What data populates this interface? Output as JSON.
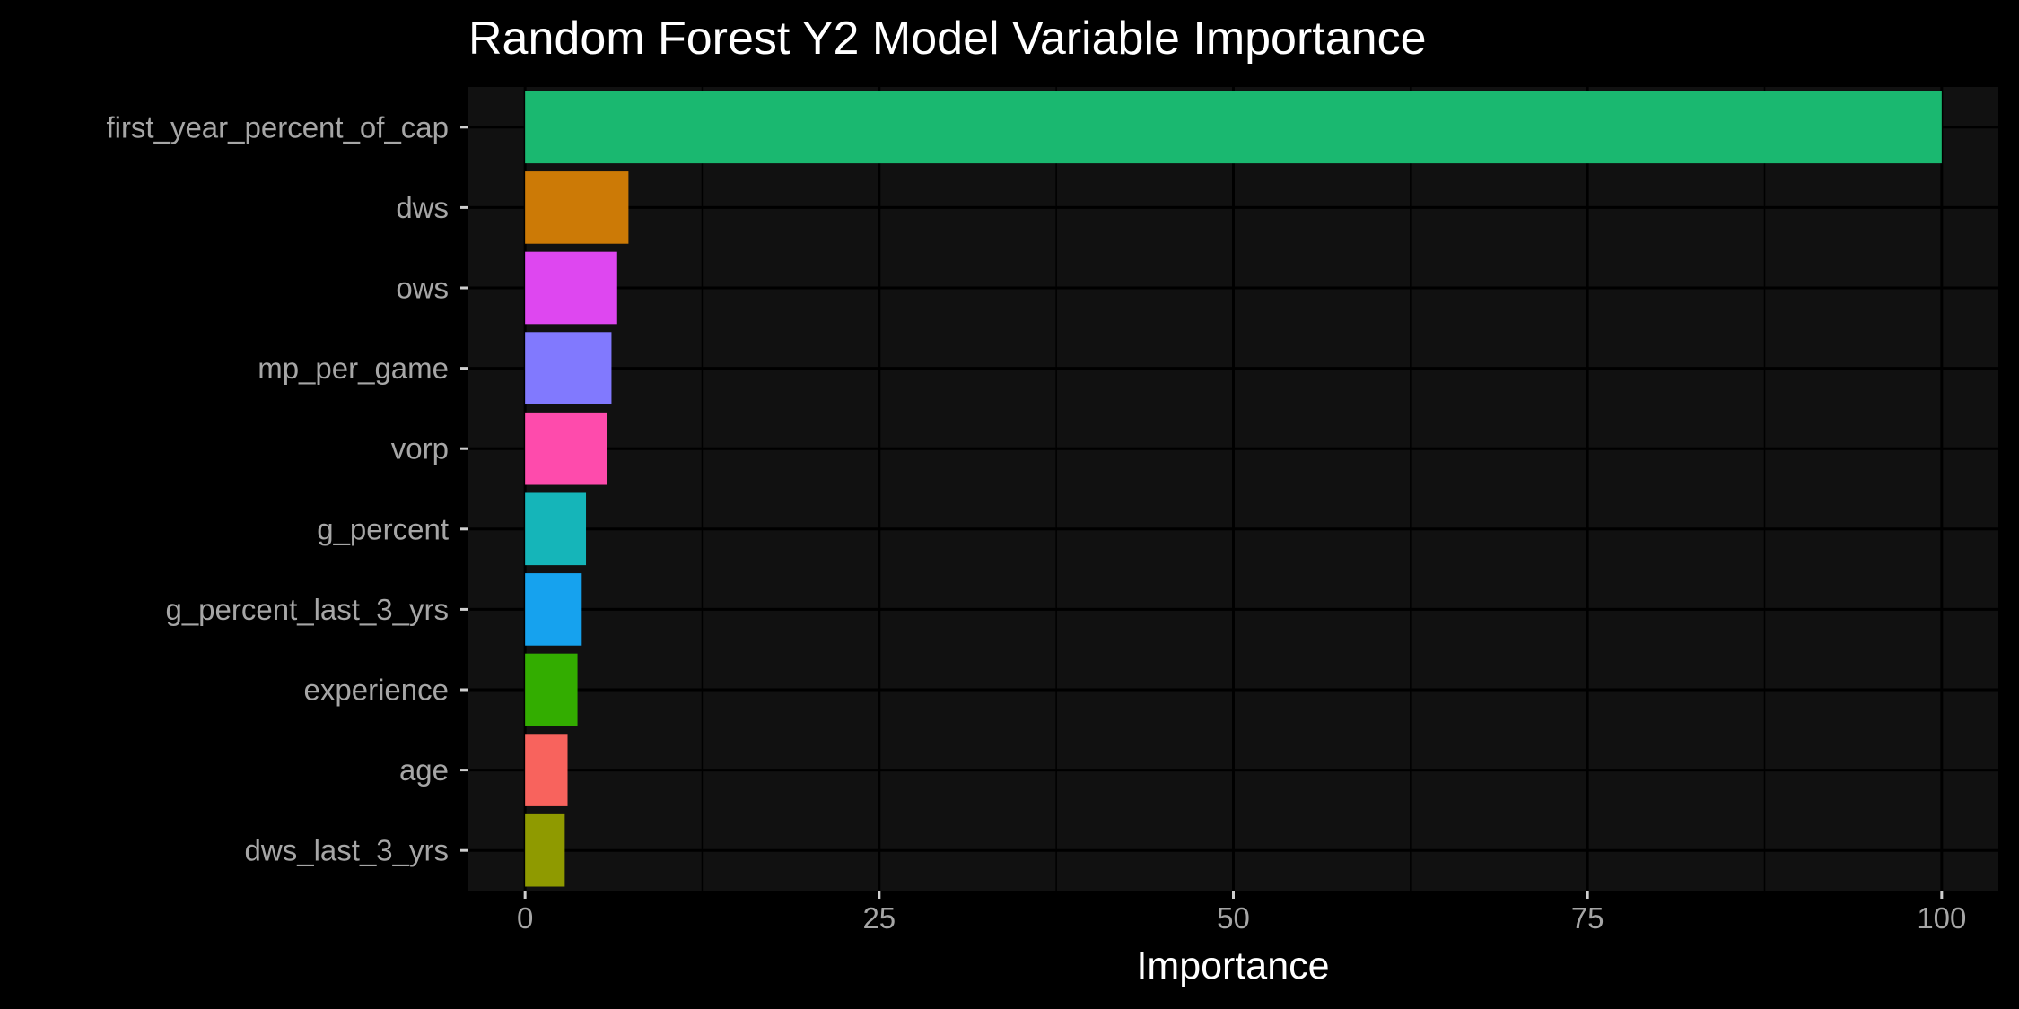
{
  "chart_data": {
    "type": "bar",
    "orientation": "horizontal",
    "title": "Random Forest Y2 Model Variable Importance",
    "xlabel": "Importance",
    "ylabel": "",
    "xlim": [
      -4,
      104
    ],
    "x_ticks": [
      0,
      25,
      50,
      75,
      100
    ],
    "x_tick_labels": [
      "0",
      "25",
      "50",
      "75",
      "100"
    ],
    "grid": true,
    "legend": "none",
    "categories": [
      "first_year_percent_of_cap",
      "dws",
      "ows",
      "mp_per_game",
      "vorp",
      "g_percent",
      "g_percent_last_3_yrs",
      "experience",
      "age",
      "dws_last_3_yrs"
    ],
    "values": [
      100,
      7.3,
      6.5,
      6.1,
      5.8,
      4.3,
      4.0,
      3.7,
      3.0,
      2.8
    ],
    "colors": [
      "#1ab870",
      "#cc7a06",
      "#de47f0",
      "#8179fe",
      "#fe4bac",
      "#15b5b9",
      "#16a2ee",
      "#33ad00",
      "#f8635d",
      "#8f9a00"
    ]
  },
  "theme": {
    "background": "#000000",
    "panel": "#111111",
    "grid": "#000000"
  }
}
